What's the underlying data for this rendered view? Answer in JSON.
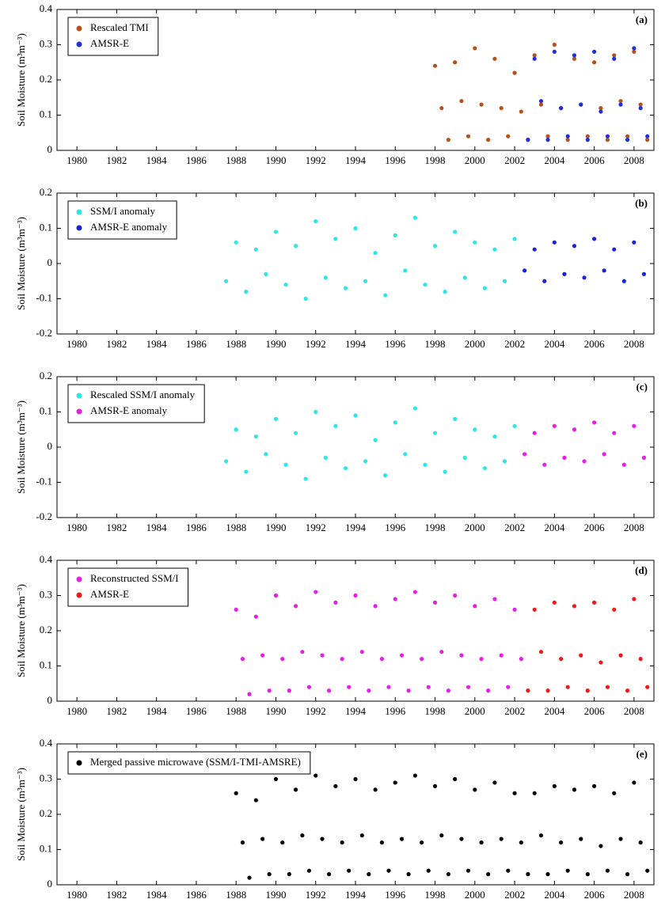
{
  "chart_data": [
    {
      "type": "scatter",
      "label": "(a)",
      "ylabel": "Soil Moisture (m³m⁻³)",
      "xlim": [
        1979,
        2009
      ],
      "xticks": [
        1980,
        1982,
        1984,
        1986,
        1988,
        1990,
        1992,
        1994,
        1996,
        1998,
        2000,
        2002,
        2004,
        2006,
        2008
      ],
      "ylim": [
        0,
        0.4
      ],
      "yticks": [
        0,
        0.1,
        0.2,
        0.3,
        0.4
      ],
      "series": [
        {
          "name": "Rescaled TMI",
          "color": "#b5521b",
          "x": [
            1998,
            1998.33,
            1998.67,
            1999,
            1999.33,
            1999.67,
            2000,
            2000.33,
            2000.67,
            2001,
            2001.33,
            2001.67,
            2002,
            2002.33,
            2002.67,
            2003,
            2003.33,
            2003.67,
            2004,
            2004.33,
            2004.67,
            2005,
            2005.33,
            2005.67,
            2006,
            2006.33,
            2006.67,
            2007,
            2007.33,
            2007.67,
            2008,
            2008.33,
            2008.67
          ],
          "values": [
            0.24,
            0.12,
            0.03,
            0.25,
            0.14,
            0.04,
            0.29,
            0.13,
            0.03,
            0.26,
            0.12,
            0.04,
            0.22,
            0.11,
            0.03,
            0.27,
            0.13,
            0.04,
            0.3,
            0.12,
            0.03,
            0.26,
            0.13,
            0.04,
            0.25,
            0.12,
            0.03,
            0.27,
            0.14,
            0.04,
            0.28,
            0.13,
            0.03
          ]
        },
        {
          "name": "AMSR-E",
          "color": "#1f2fe0",
          "x": [
            2002.67,
            2003,
            2003.33,
            2003.67,
            2004,
            2004.33,
            2004.67,
            2005,
            2005.33,
            2005.67,
            2006,
            2006.33,
            2006.67,
            2007,
            2007.33,
            2007.67,
            2008,
            2008.33,
            2008.67
          ],
          "values": [
            0.03,
            0.26,
            0.14,
            0.03,
            0.28,
            0.12,
            0.04,
            0.27,
            0.13,
            0.03,
            0.28,
            0.11,
            0.04,
            0.26,
            0.13,
            0.03,
            0.29,
            0.12,
            0.04
          ]
        }
      ]
    },
    {
      "type": "scatter",
      "label": "(b)",
      "ylabel": "Soil Moisture (m³m⁻³)",
      "xlim": [
        1979,
        2009
      ],
      "xticks": [
        1980,
        1982,
        1984,
        1986,
        1988,
        1990,
        1992,
        1994,
        1996,
        1998,
        2000,
        2002,
        2004,
        2006,
        2008
      ],
      "ylim": [
        -0.2,
        0.2
      ],
      "yticks": [
        -0.2,
        -0.1,
        0,
        0.1,
        0.2
      ],
      "series": [
        {
          "name": "SSM/I anomaly",
          "color": "#2ee6e6",
          "x": [
            1987.5,
            1988,
            1988.5,
            1989,
            1989.5,
            1990,
            1990.5,
            1991,
            1991.5,
            1992,
            1992.5,
            1993,
            1993.5,
            1994,
            1994.5,
            1995,
            1995.5,
            1996,
            1996.5,
            1997,
            1997.5,
            1998,
            1998.5,
            1999,
            1999.5,
            2000,
            2000.5,
            2001,
            2001.5,
            2002
          ],
          "values": [
            -0.05,
            0.06,
            -0.08,
            0.04,
            -0.03,
            0.09,
            -0.06,
            0.05,
            -0.1,
            0.12,
            -0.04,
            0.07,
            -0.07,
            0.1,
            -0.05,
            0.03,
            -0.09,
            0.08,
            -0.02,
            0.13,
            -0.06,
            0.05,
            -0.08,
            0.09,
            -0.04,
            0.06,
            -0.07,
            0.04,
            -0.05,
            0.07
          ]
        },
        {
          "name": "AMSR-E anomaly",
          "color": "#1a24d6",
          "x": [
            2002.5,
            2003,
            2003.5,
            2004,
            2004.5,
            2005,
            2005.5,
            2006,
            2006.5,
            2007,
            2007.5,
            2008,
            2008.5
          ],
          "values": [
            -0.02,
            0.04,
            -0.05,
            0.06,
            -0.03,
            0.05,
            -0.04,
            0.07,
            -0.02,
            0.04,
            -0.05,
            0.06,
            -0.03
          ]
        }
      ]
    },
    {
      "type": "scatter",
      "label": "(c)",
      "ylabel": "Soil Moisture (m³m⁻³)",
      "xlim": [
        1979,
        2009
      ],
      "xticks": [
        1980,
        1982,
        1984,
        1986,
        1988,
        1990,
        1992,
        1994,
        1996,
        1998,
        2000,
        2002,
        2004,
        2006,
        2008
      ],
      "ylim": [
        -0.2,
        0.2
      ],
      "yticks": [
        -0.2,
        -0.1,
        0,
        0.1,
        0.2
      ],
      "series": [
        {
          "name": "Rescaled SSM/I anomaly",
          "color": "#2ee6e6",
          "x": [
            1987.5,
            1988,
            1988.5,
            1989,
            1989.5,
            1990,
            1990.5,
            1991,
            1991.5,
            1992,
            1992.5,
            1993,
            1993.5,
            1994,
            1994.5,
            1995,
            1995.5,
            1996,
            1996.5,
            1997,
            1997.5,
            1998,
            1998.5,
            1999,
            1999.5,
            2000,
            2000.5,
            2001,
            2001.5,
            2002
          ],
          "values": [
            -0.04,
            0.05,
            -0.07,
            0.03,
            -0.02,
            0.08,
            -0.05,
            0.04,
            -0.09,
            0.1,
            -0.03,
            0.06,
            -0.06,
            0.09,
            -0.04,
            0.02,
            -0.08,
            0.07,
            -0.02,
            0.11,
            -0.05,
            0.04,
            -0.07,
            0.08,
            -0.03,
            0.05,
            -0.06,
            0.03,
            -0.04,
            0.06
          ]
        },
        {
          "name": "AMSR-E anomaly",
          "color": "#e61ee6",
          "x": [
            2002.5,
            2003,
            2003.5,
            2004,
            2004.5,
            2005,
            2005.5,
            2006,
            2006.5,
            2007,
            2007.5,
            2008,
            2008.5
          ],
          "values": [
            -0.02,
            0.04,
            -0.05,
            0.06,
            -0.03,
            0.05,
            -0.04,
            0.07,
            -0.02,
            0.04,
            -0.05,
            0.06,
            -0.03
          ]
        }
      ]
    },
    {
      "type": "scatter",
      "label": "(d)",
      "ylabel": "Soil Moisture (m³m⁻³)",
      "xlim": [
        1979,
        2009
      ],
      "xticks": [
        1980,
        1982,
        1984,
        1986,
        1988,
        1990,
        1992,
        1994,
        1996,
        1998,
        2000,
        2002,
        2004,
        2006,
        2008
      ],
      "ylim": [
        0,
        0.4
      ],
      "yticks": [
        0,
        0.1,
        0.2,
        0.3,
        0.4
      ],
      "series": [
        {
          "name": "Reconstructed SSM/I",
          "color": "#e61ee6",
          "x": [
            1988,
            1988.33,
            1988.67,
            1989,
            1989.33,
            1989.67,
            1990,
            1990.33,
            1990.67,
            1991,
            1991.33,
            1991.67,
            1992,
            1992.33,
            1992.67,
            1993,
            1993.33,
            1993.67,
            1994,
            1994.33,
            1994.67,
            1995,
            1995.33,
            1995.67,
            1996,
            1996.33,
            1996.67,
            1997,
            1997.33,
            1997.67,
            1998,
            1998.33,
            1998.67,
            1999,
            1999.33,
            1999.67,
            2000,
            2000.33,
            2000.67,
            2001,
            2001.33,
            2001.67,
            2002,
            2002.33
          ],
          "values": [
            0.26,
            0.12,
            0.02,
            0.24,
            0.13,
            0.03,
            0.3,
            0.12,
            0.03,
            0.27,
            0.14,
            0.04,
            0.31,
            0.13,
            0.03,
            0.28,
            0.12,
            0.04,
            0.3,
            0.14,
            0.03,
            0.27,
            0.12,
            0.04,
            0.29,
            0.13,
            0.03,
            0.31,
            0.12,
            0.04,
            0.28,
            0.14,
            0.03,
            0.3,
            0.13,
            0.04,
            0.27,
            0.12,
            0.03,
            0.29,
            0.13,
            0.04,
            0.26,
            0.12
          ]
        },
        {
          "name": "AMSR-E",
          "color": "#f01818",
          "x": [
            2002.67,
            2003,
            2003.33,
            2003.67,
            2004,
            2004.33,
            2004.67,
            2005,
            2005.33,
            2005.67,
            2006,
            2006.33,
            2006.67,
            2007,
            2007.33,
            2007.67,
            2008,
            2008.33,
            2008.67
          ],
          "values": [
            0.03,
            0.26,
            0.14,
            0.03,
            0.28,
            0.12,
            0.04,
            0.27,
            0.13,
            0.03,
            0.28,
            0.11,
            0.04,
            0.26,
            0.13,
            0.03,
            0.29,
            0.12,
            0.04
          ]
        }
      ]
    },
    {
      "type": "scatter",
      "label": "(e)",
      "ylabel": "Soil Moisture (m³m⁻³)",
      "xlim": [
        1979,
        2009
      ],
      "xticks": [
        1980,
        1982,
        1984,
        1986,
        1988,
        1990,
        1992,
        1994,
        1996,
        1998,
        2000,
        2002,
        2004,
        2006,
        2008
      ],
      "ylim": [
        0,
        0.4
      ],
      "yticks": [
        0,
        0.1,
        0.2,
        0.3,
        0.4
      ],
      "series": [
        {
          "name": "Merged passive microwave (SSM/I-TMI-AMSRE)",
          "color": "#000000",
          "x": [
            1988,
            1988.33,
            1988.67,
            1989,
            1989.33,
            1989.67,
            1990,
            1990.33,
            1990.67,
            1991,
            1991.33,
            1991.67,
            1992,
            1992.33,
            1992.67,
            1993,
            1993.33,
            1993.67,
            1994,
            1994.33,
            1994.67,
            1995,
            1995.33,
            1995.67,
            1996,
            1996.33,
            1996.67,
            1997,
            1997.33,
            1997.67,
            1998,
            1998.33,
            1998.67,
            1999,
            1999.33,
            1999.67,
            2000,
            2000.33,
            2000.67,
            2001,
            2001.33,
            2001.67,
            2002,
            2002.33,
            2002.67,
            2003,
            2003.33,
            2003.67,
            2004,
            2004.33,
            2004.67,
            2005,
            2005.33,
            2005.67,
            2006,
            2006.33,
            2006.67,
            2007,
            2007.33,
            2007.67,
            2008,
            2008.33,
            2008.67
          ],
          "values": [
            0.26,
            0.12,
            0.02,
            0.24,
            0.13,
            0.03,
            0.3,
            0.12,
            0.03,
            0.27,
            0.14,
            0.04,
            0.31,
            0.13,
            0.03,
            0.28,
            0.12,
            0.04,
            0.3,
            0.14,
            0.03,
            0.27,
            0.12,
            0.04,
            0.29,
            0.13,
            0.03,
            0.31,
            0.12,
            0.04,
            0.28,
            0.14,
            0.03,
            0.3,
            0.13,
            0.04,
            0.27,
            0.12,
            0.03,
            0.29,
            0.13,
            0.04,
            0.26,
            0.12,
            0.03,
            0.26,
            0.14,
            0.03,
            0.28,
            0.12,
            0.04,
            0.27,
            0.13,
            0.03,
            0.28,
            0.11,
            0.04,
            0.26,
            0.13,
            0.03,
            0.29,
            0.12,
            0.04
          ]
        }
      ]
    }
  ]
}
